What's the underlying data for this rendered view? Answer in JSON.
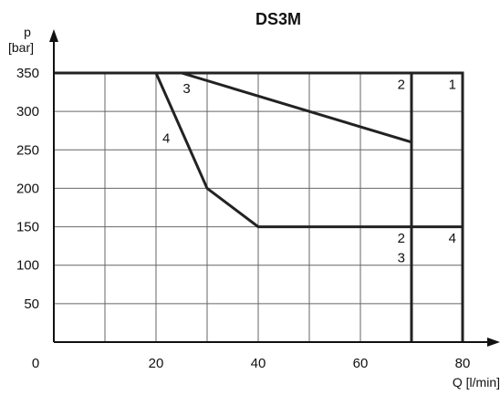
{
  "chart_data": {
    "type": "line",
    "title": "DS3M",
    "xlabel": "Q [l/min]",
    "ylabel": "p [bar]",
    "ylabel_lines": [
      "p",
      "[bar]"
    ],
    "xlim": [
      0,
      80
    ],
    "ylim": [
      0,
      350
    ],
    "x_ticks": [
      0,
      20,
      40,
      60,
      80
    ],
    "y_ticks": [
      50,
      100,
      150,
      200,
      250,
      300,
      350
    ],
    "grid": true,
    "series": [
      {
        "x": [
          0,
          70,
          70
        ],
        "y": [
          350,
          350,
          0
        ]
      },
      {
        "x": [
          70,
          80,
          80
        ],
        "y": [
          350,
          350,
          0
        ]
      },
      {
        "x": [
          25,
          70
        ],
        "y": [
          350,
          260
        ]
      },
      {
        "x": [
          20,
          30,
          40,
          80
        ],
        "y": [
          350,
          200,
          150,
          150
        ]
      }
    ],
    "annotations": [
      {
        "text": "1",
        "x": 78,
        "y": 335
      },
      {
        "text": "2",
        "x": 68,
        "y": 335
      },
      {
        "text": "3",
        "x": 26,
        "y": 330
      },
      {
        "text": "4",
        "x": 22,
        "y": 265
      },
      {
        "text": "2",
        "x": 68,
        "y": 135
      },
      {
        "text": "3",
        "x": 68,
        "y": 110
      },
      {
        "text": "4",
        "x": 78,
        "y": 135
      }
    ]
  }
}
